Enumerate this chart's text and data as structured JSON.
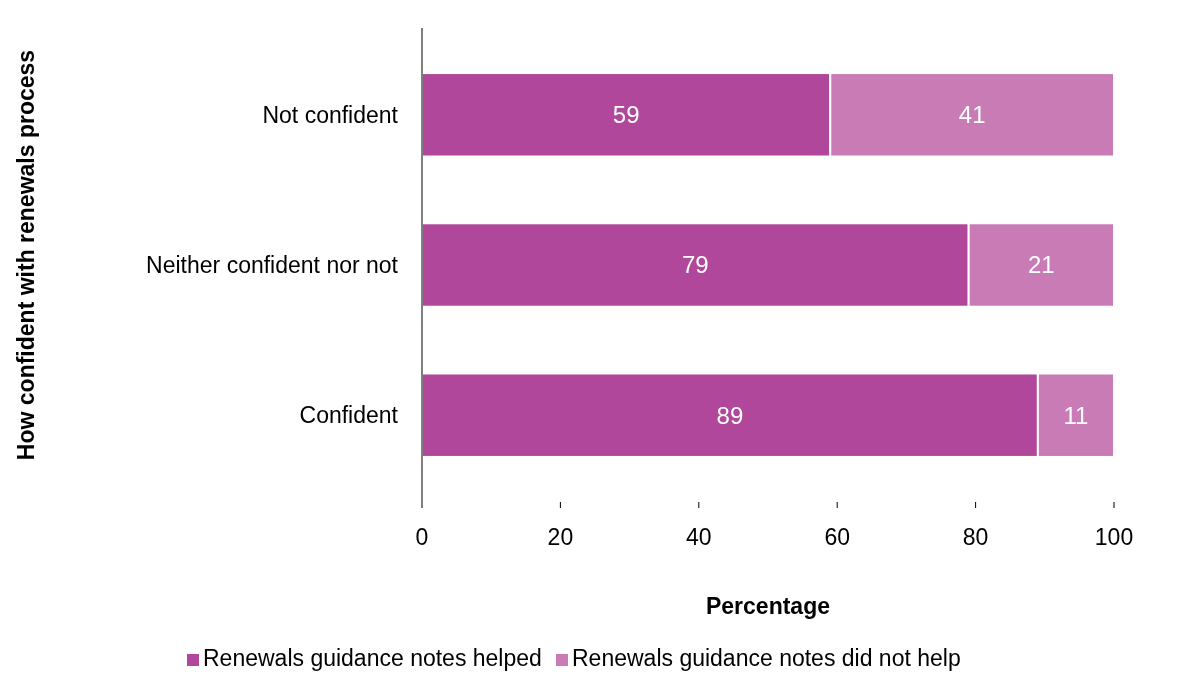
{
  "chart_data": {
    "type": "bar",
    "orientation": "horizontal",
    "stacked": true,
    "xlabel": "Percentage",
    "ylabel": "How confident with renewals process",
    "categories": [
      "Not confident",
      "Neither confident nor not",
      "Confident"
    ],
    "series": [
      {
        "name": "Renewals guidance notes helped",
        "color": "#b0479a",
        "values": [
          59,
          79,
          89
        ]
      },
      {
        "name": "Renewals guidance notes did not help",
        "color": "#c97bb6",
        "values": [
          41,
          21,
          11
        ]
      }
    ],
    "xlim": [
      0,
      100
    ],
    "xticks": [
      0,
      20,
      40,
      60,
      80,
      100
    ],
    "data_labels": true,
    "legend": "bottom",
    "grid": false
  }
}
